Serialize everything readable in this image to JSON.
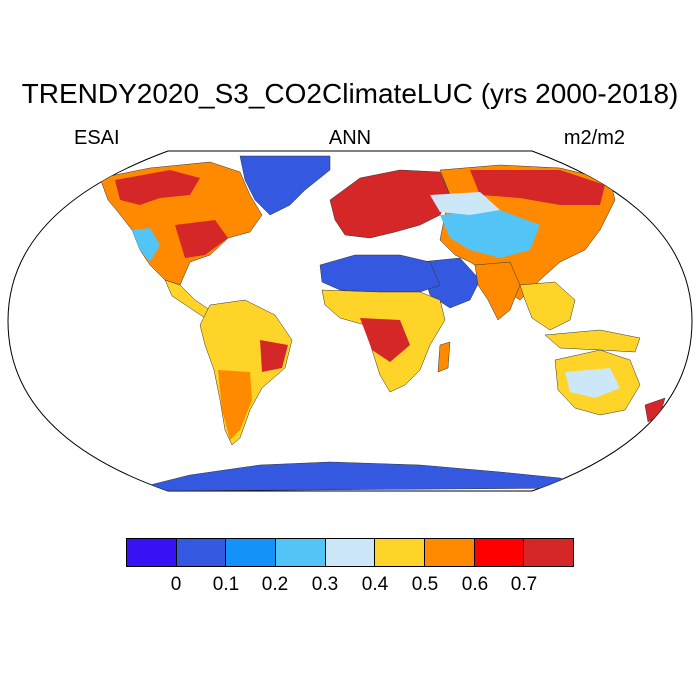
{
  "header": {
    "title": "TRENDY2020_S3_CO2ClimateLUC (yrs 2000-2018)",
    "left_label": "ESAI",
    "center_label": "ANN",
    "right_label": "m2/m2"
  },
  "colorbar": {
    "colors": [
      "#3a10f5",
      "#3558e0",
      "#1592f7",
      "#52c4f5",
      "#cce7f7",
      "#ffd428",
      "#ff8a00",
      "#ff0000",
      "#d62728"
    ],
    "tick_labels": [
      "0",
      "0.1",
      "0.2",
      "0.3",
      "0.4",
      "0.5",
      "0.6",
      "0.7"
    ]
  },
  "map": {
    "projection": "robinson",
    "colors": {
      "ice": "#3558e0",
      "desert": "#3558e0",
      "low": "#52c4f5",
      "pale": "#cce7f7",
      "mid": "#ffd428",
      "orange": "#ff8a00",
      "high": "#d62728"
    }
  }
}
